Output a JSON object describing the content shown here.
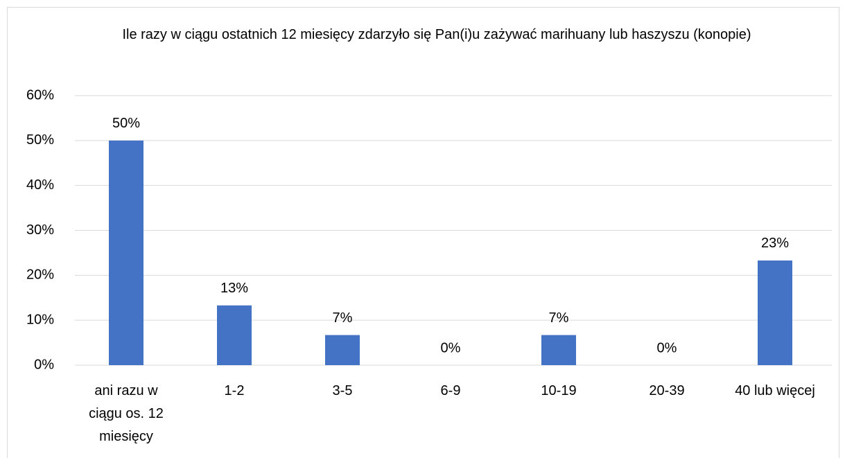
{
  "chart_data": {
    "type": "bar",
    "title": "Ile razy w ciągu ostatnich 12 miesięcy zdarzyło się Pan(i)u zażywać marihuany lub haszyszu (konopie)",
    "categories": [
      "ani razu w ciągu os. 12 miesięcy",
      "1-2",
      "3-5",
      "6-9",
      "10-19",
      "20-39",
      "40 lub więcej"
    ],
    "values": [
      50,
      13.3,
      6.7,
      0,
      6.7,
      0,
      23.3
    ],
    "value_labels": [
      "50%",
      "13%",
      "7%",
      "0%",
      "7%",
      "0%",
      "23%"
    ],
    "color": "#4472c4",
    "ylim": [
      0,
      60
    ],
    "yticks": [
      {
        "value": 0,
        "label": "0%"
      },
      {
        "value": 10,
        "label": "10%"
      },
      {
        "value": 20,
        "label": "20%"
      },
      {
        "value": 30,
        "label": "30%"
      },
      {
        "value": 40,
        "label": "40%"
      },
      {
        "value": 50,
        "label": "50%"
      },
      {
        "value": 60,
        "label": "60%"
      }
    ],
    "grid": true
  }
}
